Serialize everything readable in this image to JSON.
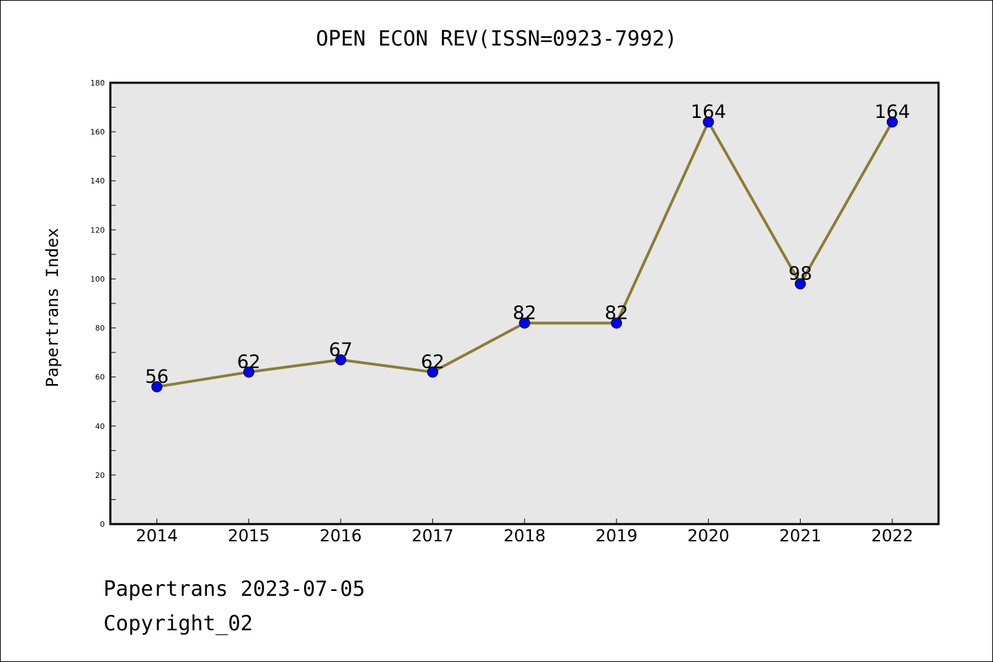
{
  "chart_data": {
    "type": "line",
    "title": "OPEN ECON REV(ISSN=0923-7992)",
    "xlabel": "",
    "ylabel": "Papertrans Index",
    "categories": [
      "2014",
      "2015",
      "2016",
      "2017",
      "2018",
      "2019",
      "2020",
      "2021",
      "2022"
    ],
    "series": [
      {
        "values": [
          56,
          62,
          67,
          62,
          82,
          82,
          164,
          98,
          164
        ]
      }
    ],
    "data_labels": [
      "56",
      "62",
      "67",
      "62",
      "82",
      "82",
      "164",
      "98",
      "164"
    ],
    "ylim": [
      0,
      180
    ],
    "yticks": [
      "0",
      "20",
      "40",
      "60",
      "80",
      "100",
      "120",
      "140",
      "160",
      "180"
    ],
    "grid": false,
    "line_color": "#8b7d35",
    "marker_color": "#0000ff",
    "plot_background": "#e7e7e7"
  },
  "footer": {
    "line1": "Papertrans 2023-07-05",
    "line2": "Copyright_02"
  }
}
